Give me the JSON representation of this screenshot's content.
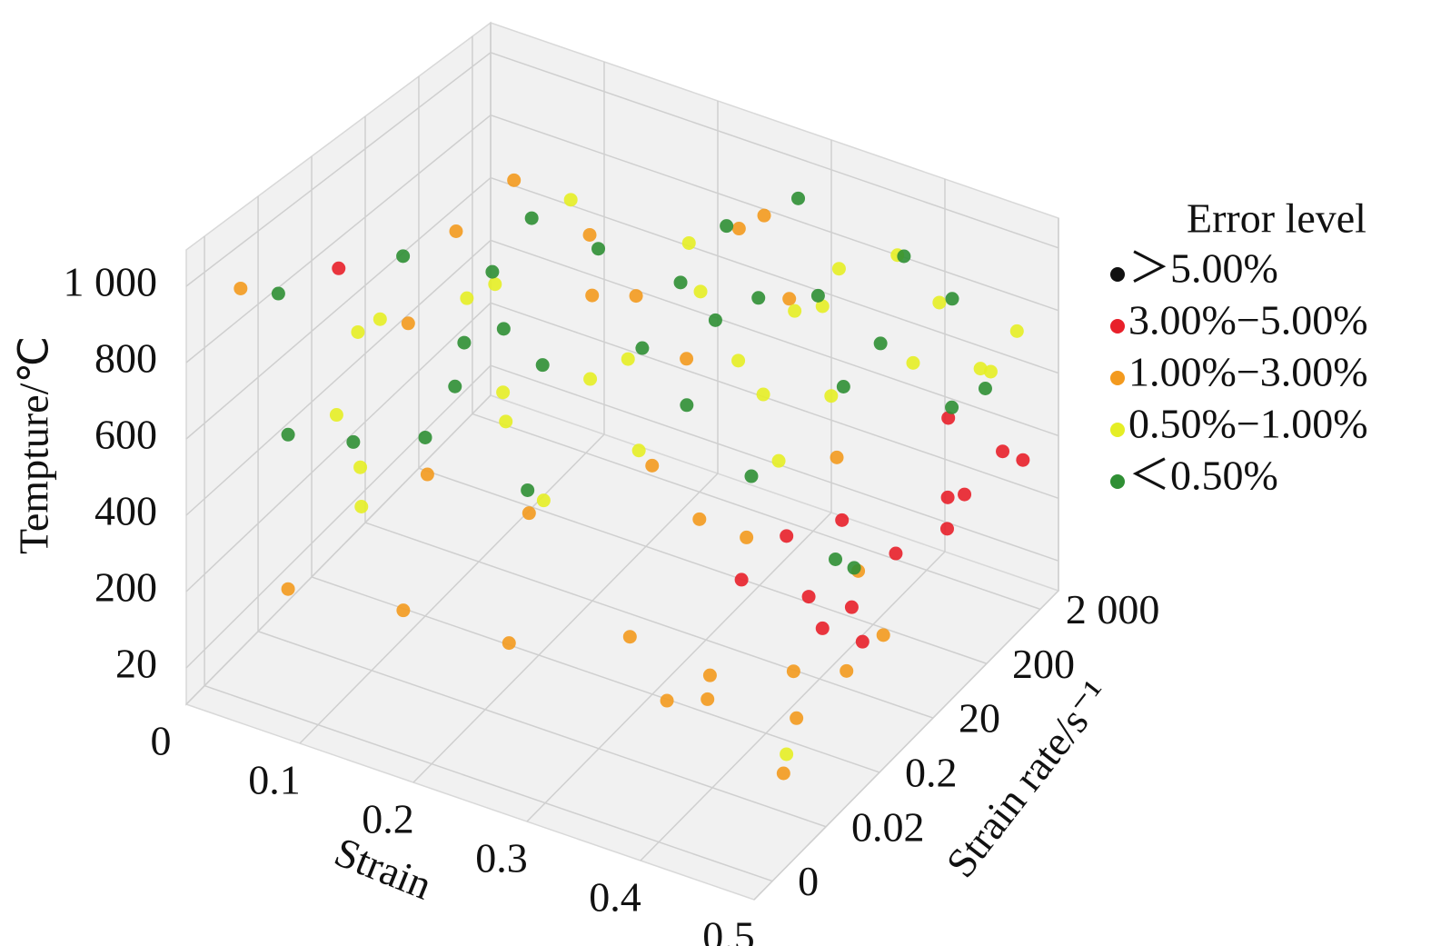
{
  "chart_data": {
    "type": "scatter3d",
    "x_label": "Strain",
    "y_label": "Strain rate/s⁻¹",
    "z_label": "Tempture/℃",
    "legend_title": "Error level",
    "xlim": [
      0,
      0.5
    ],
    "xticks": [
      0,
      0.1,
      0.2,
      0.3,
      0.4,
      0.5
    ],
    "ylim": [
      0,
      2000
    ],
    "yticks": [
      0,
      0.02,
      0.2,
      20,
      200,
      {
        "value": 2000,
        "label": "2 000"
      }
    ],
    "zlim": [
      20,
      1000
    ],
    "zticks": [
      20,
      200,
      400,
      600,
      800,
      {
        "value": 1000,
        "label": "1 000"
      }
    ],
    "grid": true,
    "series": [
      {
        "name": "＞5.00%",
        "color": "#111111",
        "x": [],
        "y": [],
        "z": []
      },
      {
        "name": "3.00%−5.00%",
        "color": "#e8202a",
        "x": [
          0.42,
          0.45,
          0.38,
          0.48,
          0.4,
          0.35,
          0.46,
          0.44,
          0.33,
          0.49,
          0.41,
          0.37,
          0.47,
          0.43,
          0.05
        ],
        "y": [
          200,
          800,
          60,
          1500,
          30,
          100,
          400,
          1200,
          25,
          1800,
          90,
          300,
          600,
          50,
          0.1
        ],
        "z": [
          150,
          300,
          100,
          420,
          60,
          200,
          250,
          500,
          120,
          380,
          80,
          180,
          350,
          40,
          900
        ]
      },
      {
        "name": "1.00%−3.00%",
        "color": "#f39a1e",
        "x": [
          0.05,
          0.12,
          0.2,
          0.28,
          0.35,
          0.42,
          0.48,
          0.1,
          0.18,
          0.25,
          0.32,
          0.4,
          0.46,
          0.03,
          0.15,
          0.22,
          0.3,
          0.38,
          0.44,
          0.08,
          0.14,
          0.27,
          0.33,
          0.41,
          0.02,
          0.19,
          0.36,
          0.24,
          0.11,
          0.47
        ],
        "y": [
          0.01,
          0.05,
          0.1,
          0.3,
          0.5,
          2,
          10,
          1,
          5,
          30,
          80,
          150,
          0.03,
          50,
          300,
          800,
          1200,
          0.08,
          0.15,
          20,
          600,
          1500,
          5,
          40,
          0.005,
          250,
          0.02,
          1800,
          100,
          0.6
        ],
        "z": [
          150,
          80,
          40,
          60,
          30,
          100,
          200,
          300,
          250,
          350,
          180,
          120,
          20,
          500,
          600,
          450,
          700,
          90,
          50,
          850,
          750,
          900,
          400,
          550,
          950,
          650,
          110,
          800,
          980,
          160
        ]
      },
      {
        "name": "0.50%−1.00%",
        "color": "#e5ee25",
        "x": [
          0.06,
          0.13,
          0.21,
          0.29,
          0.37,
          0.44,
          0.09,
          0.17,
          0.26,
          0.34,
          0.43,
          0.49,
          0.02,
          0.16,
          0.23,
          0.31,
          0.39,
          0.45,
          0.07,
          0.12,
          0.28,
          0.35,
          0.48,
          0.2,
          0.04,
          0.4,
          0.26,
          0.15,
          0.33,
          0.46
        ],
        "y": [
          0.3,
          3,
          15,
          40,
          200,
          900,
          0.02,
          0.6,
          8,
          60,
          400,
          1600,
          1,
          100,
          500,
          1000,
          1400,
          1900,
          0.1,
          25,
          250,
          700,
          1100,
          2,
          0.5,
          30,
          12,
          5,
          150,
          0.04
        ],
        "z": [
          700,
          820,
          600,
          900,
          950,
          880,
          450,
          530,
          760,
          640,
          720,
          800,
          380,
          980,
          840,
          690,
          930,
          610,
          260,
          420,
          560,
          500,
          700,
          330,
          640,
          990,
          470,
          870,
          360,
          60
        ]
      },
      {
        "name": "＜0.50%",
        "color": "#2f8f34",
        "x": [
          0.01,
          0.08,
          0.16,
          0.24,
          0.32,
          0.4,
          0.47,
          0.05,
          0.13,
          0.21,
          0.29,
          0.37,
          0.45,
          0.1,
          0.18,
          0.27,
          0.35,
          0.43,
          0.03,
          0.14,
          0.22,
          0.3,
          0.38,
          0.46,
          0.07,
          0.19,
          0.25,
          0.34,
          0.42,
          0.11
        ],
        "y": [
          0.05,
          0.4,
          4,
          35,
          120,
          450,
          1300,
          0.01,
          2,
          18,
          90,
          350,
          950,
          0.2,
          10,
          70,
          260,
          1700,
          3,
          45,
          600,
          1500,
          2000,
          0.7,
          180,
          0.25,
          1000,
          20,
          60,
          7
        ],
        "z": [
          820,
          900,
          760,
          680,
          860,
          740,
          620,
          560,
          700,
          960,
          780,
          580,
          900,
          410,
          640,
          520,
          840,
          480,
          300,
          940,
          700,
          990,
          870,
          460,
          600,
          360,
          880,
          430,
          220,
          520
        ]
      }
    ]
  }
}
